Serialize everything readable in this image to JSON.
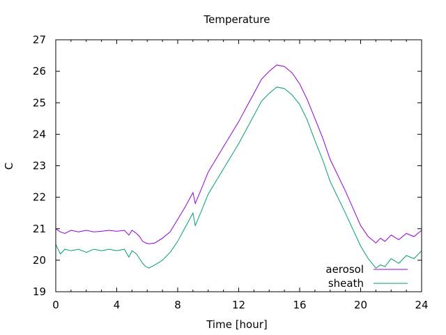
{
  "chart_data": {
    "type": "line",
    "title": "Temperature",
    "xlabel": "Time [hour]",
    "ylabel": "C",
    "xlim": [
      0,
      24
    ],
    "ylim": [
      19,
      27
    ],
    "xticks": [
      0,
      4,
      8,
      12,
      16,
      20,
      24
    ],
    "yticks": [
      19,
      20,
      21,
      22,
      23,
      24,
      25,
      26,
      27
    ],
    "grid": false,
    "legend_position": "bottom-right",
    "series": [
      {
        "name": "aerosol",
        "color": "#9400d3",
        "x": [
          0,
          0.3,
          0.6,
          1,
          1.5,
          2,
          2.5,
          3,
          3.5,
          4,
          4.5,
          4.8,
          5.0,
          5.3,
          5.5,
          5.7,
          5.9,
          6.1,
          6.5,
          7,
          7.5,
          8,
          8.5,
          9,
          9.15,
          9.5,
          10,
          11,
          12,
          12.5,
          13,
          13.5,
          14,
          14.5,
          15,
          15.5,
          16,
          16.5,
          17,
          17.5,
          18,
          19,
          20,
          20.5,
          21,
          21.3,
          21.6,
          22,
          22.5,
          23,
          23.5,
          24
        ],
        "y": [
          21.0,
          20.9,
          20.85,
          20.95,
          20.9,
          20.95,
          20.9,
          20.92,
          20.95,
          20.92,
          20.95,
          20.8,
          20.95,
          20.85,
          20.75,
          20.6,
          20.55,
          20.52,
          20.55,
          20.7,
          20.9,
          21.3,
          21.7,
          22.15,
          21.8,
          22.2,
          22.8,
          23.6,
          24.4,
          24.85,
          25.3,
          25.75,
          26.0,
          26.2,
          26.15,
          25.95,
          25.6,
          25.1,
          24.5,
          23.9,
          23.2,
          22.2,
          21.1,
          20.75,
          20.55,
          20.7,
          20.6,
          20.8,
          20.65,
          20.85,
          20.75,
          20.95
        ]
      },
      {
        "name": "sheath",
        "color": "#009e73",
        "x": [
          0,
          0.3,
          0.6,
          1,
          1.5,
          2,
          2.5,
          3,
          3.5,
          4,
          4.5,
          4.8,
          5.0,
          5.3,
          5.5,
          5.7,
          5.9,
          6.1,
          6.5,
          7,
          7.5,
          8,
          8.5,
          9,
          9.15,
          9.5,
          10,
          11,
          12,
          12.5,
          13,
          13.5,
          14,
          14.5,
          15,
          15.5,
          16,
          16.5,
          17,
          17.5,
          18,
          19,
          20,
          20.5,
          21,
          21.3,
          21.6,
          22,
          22.5,
          23,
          23.5,
          24
        ],
        "y": [
          20.5,
          20.2,
          20.35,
          20.3,
          20.35,
          20.25,
          20.35,
          20.3,
          20.35,
          20.3,
          20.35,
          20.1,
          20.3,
          20.2,
          20.05,
          19.9,
          19.8,
          19.75,
          19.85,
          20.0,
          20.25,
          20.6,
          21.05,
          21.5,
          21.1,
          21.5,
          22.1,
          22.9,
          23.7,
          24.15,
          24.6,
          25.05,
          25.3,
          25.5,
          25.45,
          25.25,
          24.95,
          24.45,
          23.8,
          23.2,
          22.5,
          21.5,
          20.45,
          20.05,
          19.75,
          19.85,
          19.8,
          20.05,
          19.9,
          20.15,
          20.05,
          20.3
        ]
      }
    ]
  }
}
